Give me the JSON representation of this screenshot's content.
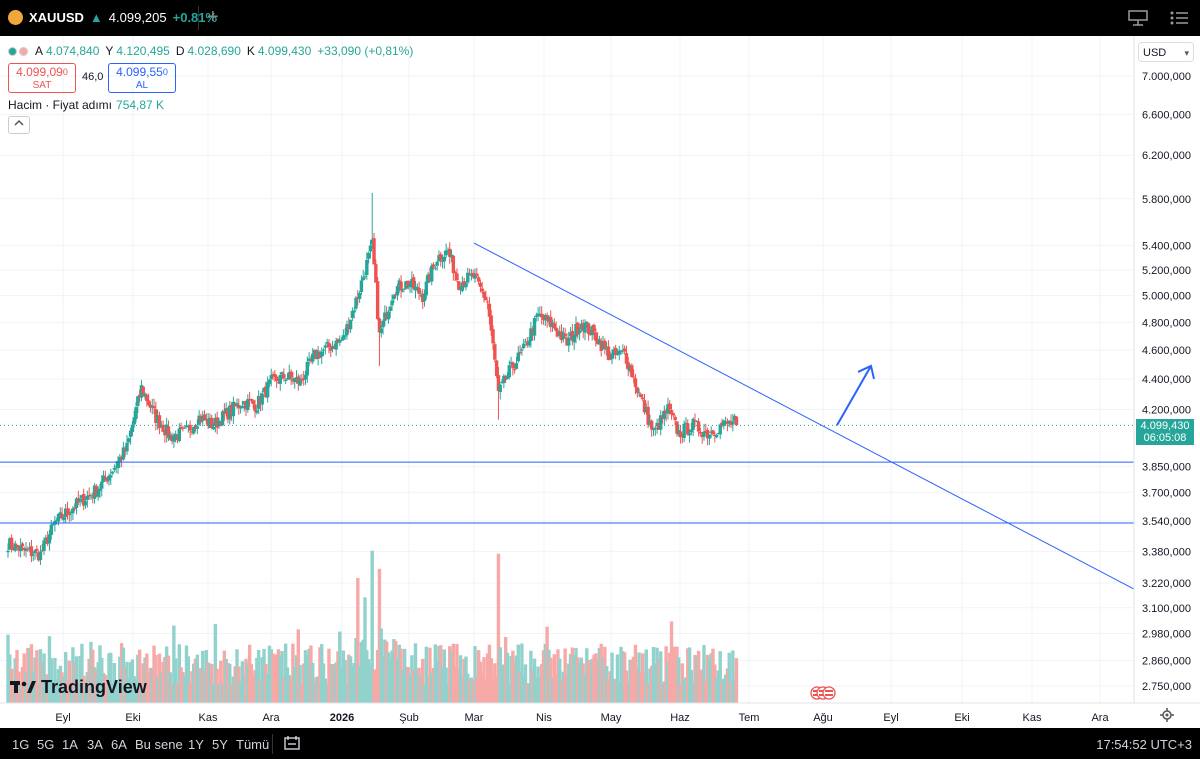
{
  "topbar": {
    "symbol": "XAUUSD",
    "price": "4.099,205",
    "change": "+0.81%",
    "change_arrow": "▲",
    "add_tab": "+",
    "icons": [
      "layout-icon",
      "more-icon"
    ]
  },
  "legend": {
    "o_label": "A",
    "o_value": "4.074,840",
    "h_label": "Y",
    "h_value": "4.120,495",
    "l_label": "D",
    "l_value": "4.028,690",
    "c_label": "K",
    "c_value": "4.099,430",
    "change": "+33,090 (+0,81%)"
  },
  "trade": {
    "sell_price": "4.099,09",
    "sell_price_sup": "0",
    "sell_label": "SAT",
    "spread": "46,0",
    "buy_price": "4.099,55",
    "buy_price_sup": "0",
    "buy_label": "AL"
  },
  "volume_legend": {
    "label": "Hacim · Fiyat adımı",
    "value": "754,87 K"
  },
  "currency": {
    "label": "USD"
  },
  "price_tag": {
    "price": "4.099,430",
    "countdown": "06:05:08"
  },
  "brand": {
    "name": "TradingView"
  },
  "bottombar": {
    "timeframes": [
      "1G",
      "5G",
      "1A",
      "3A",
      "6A",
      "Bu sene",
      "1Y",
      "5Y",
      "Tümü"
    ],
    "clock": "17:54:52 UTC+3"
  },
  "chart_data": {
    "type": "candlestick",
    "symbol": "XAUUSD",
    "price_axis": {
      "scale": "log",
      "tick_labels": [
        "7.000,000",
        "6.600,000",
        "6.200,000",
        "5.800,000",
        "5.400,000",
        "5.200,000",
        "5.000,000",
        "4.800,000",
        "4.600,000",
        "4.400,000",
        "4.200,000",
        "3.850,000",
        "3.700,000",
        "3.540,000",
        "3.380,000",
        "3.220,000",
        "3.100,000",
        "2.980,000",
        "2.860,000",
        "2.750,000"
      ],
      "tick_values": [
        7000,
        6600,
        6200,
        5800,
        5400,
        5200,
        5000,
        4800,
        4600,
        4400,
        4200,
        3850,
        3700,
        3540,
        3380,
        3220,
        3100,
        2980,
        2860,
        2750
      ]
    },
    "time_axis": {
      "labels": [
        "Eyl",
        "Eki",
        "Kas",
        "Ara",
        "2026",
        "Şub",
        "Mar",
        "Nis",
        "May",
        "Haz",
        "Tem",
        "Ağu",
        "Eyl",
        "Eki",
        "Kas",
        "Ara"
      ],
      "bold": [
        false,
        false,
        false,
        false,
        true,
        false,
        false,
        false,
        false,
        false,
        false,
        false,
        false,
        false,
        false,
        false
      ]
    },
    "bar_index_months": [
      0,
      1,
      2,
      3,
      4,
      5,
      6,
      7,
      8,
      9,
      10,
      11,
      12,
      13,
      14,
      15
    ],
    "last_price": 4099.43,
    "close_anchors": [
      [
        0,
        3420
      ],
      [
        10,
        3380
      ],
      [
        18,
        3365
      ],
      [
        26,
        3530
      ],
      [
        34,
        3600
      ],
      [
        42,
        3660
      ],
      [
        50,
        3720
      ],
      [
        58,
        3830
      ],
      [
        66,
        3960
      ],
      [
        74,
        4340
      ],
      [
        82,
        4150
      ],
      [
        90,
        4030
      ],
      [
        98,
        4050
      ],
      [
        106,
        4150
      ],
      [
        114,
        4100
      ],
      [
        122,
        4180
      ],
      [
        130,
        4250
      ],
      [
        138,
        4230
      ],
      [
        146,
        4380
      ],
      [
        154,
        4420
      ],
      [
        162,
        4380
      ],
      [
        170,
        4560
      ],
      [
        178,
        4620
      ],
      [
        186,
        4680
      ],
      [
        194,
        5000
      ],
      [
        202,
        5400
      ],
      [
        206,
        4700
      ],
      [
        214,
        5050
      ],
      [
        222,
        5100
      ],
      [
        230,
        5000
      ],
      [
        238,
        5300
      ],
      [
        244,
        5350
      ],
      [
        250,
        5100
      ],
      [
        258,
        5150
      ],
      [
        266,
        4950
      ],
      [
        272,
        4300
      ],
      [
        278,
        4450
      ],
      [
        286,
        4600
      ],
      [
        294,
        4850
      ],
      [
        302,
        4780
      ],
      [
        310,
        4650
      ],
      [
        318,
        4800
      ],
      [
        326,
        4700
      ],
      [
        334,
        4550
      ],
      [
        342,
        4580
      ],
      [
        350,
        4300
      ],
      [
        358,
        4050
      ],
      [
        366,
        4200
      ],
      [
        372,
        4050
      ],
      [
        380,
        4100
      ],
      [
        388,
        4050
      ],
      [
        396,
        4100
      ],
      [
        404,
        4120
      ]
    ],
    "volume_shape": "random-with-spikes",
    "horizontal_lines": [
      3875,
      3530
    ],
    "trendline": {
      "from": [
        "Mar",
        5420
      ],
      "to": [
        "Ara",
        3190
      ]
    },
    "arrow": {
      "from": [
        "Ağu",
        4100
      ],
      "to": [
        "Ağu-Eyl",
        4490
      ]
    },
    "colors": {
      "up": "#26a69a",
      "down": "#ef5350",
      "vol_up": "#92d2cc",
      "vol_down": "#f7a9a7",
      "lines": "#2962ff"
    }
  }
}
